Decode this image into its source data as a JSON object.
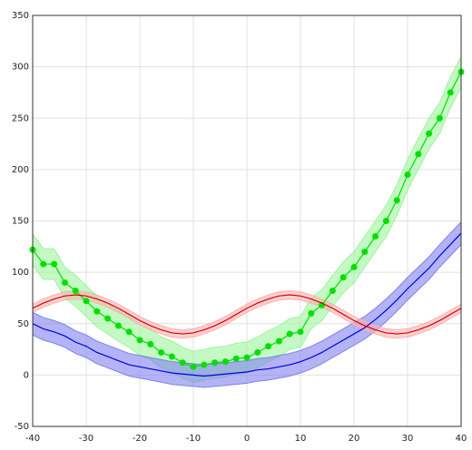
{
  "chart_data": {
    "type": "line",
    "x": [
      -40,
      -38,
      -36,
      -34,
      -32,
      -30,
      -28,
      -26,
      -24,
      -22,
      -20,
      -18,
      -16,
      -14,
      -12,
      -10,
      -8,
      -6,
      -4,
      -2,
      0,
      2,
      4,
      6,
      8,
      10,
      12,
      14,
      16,
      18,
      20,
      22,
      24,
      26,
      28,
      30,
      32,
      34,
      36,
      38,
      40
    ],
    "series": [
      {
        "color": "#00e000",
        "band_color": "#9cf59c",
        "markers": true,
        "error": 15,
        "values": [
          122,
          108,
          108,
          90,
          82,
          72,
          62,
          55,
          48,
          42,
          34,
          30,
          22,
          18,
          12,
          8,
          10,
          12,
          13,
          16,
          17,
          22,
          28,
          33,
          40,
          42,
          60,
          68,
          82,
          95,
          105,
          120,
          135,
          150,
          170,
          195,
          215,
          235,
          250,
          275,
          295
        ]
      },
      {
        "color": "#0000dd",
        "band_color": "#8080f0",
        "markers": false,
        "error": 11,
        "values": [
          50,
          45,
          42,
          38,
          32,
          28,
          22,
          18,
          14,
          10,
          8,
          6,
          4,
          2,
          1,
          0,
          -1,
          0,
          1,
          2,
          3,
          5,
          6,
          8,
          10,
          13,
          17,
          22,
          28,
          34,
          40,
          46,
          54,
          63,
          73,
          84,
          94,
          104,
          116,
          127,
          138
        ]
      },
      {
        "color": "#e00000",
        "band_color": "#f7b0b0",
        "markers": false,
        "error": 4,
        "values": [
          65,
          70,
          74,
          77,
          78,
          77,
          74,
          70,
          65,
          59,
          53,
          48,
          44,
          41,
          40,
          41,
          44,
          48,
          53,
          59,
          65,
          70,
          74,
          77,
          78,
          77,
          74,
          70,
          65,
          59,
          53,
          48,
          44,
          41,
          40,
          41,
          44,
          48,
          53,
          59,
          65
        ]
      }
    ],
    "xlim": [
      -40,
      40
    ],
    "xticks": [
      -40,
      -30,
      -20,
      -10,
      0,
      10,
      20,
      30,
      40
    ],
    "ylim": [
      -50,
      350
    ],
    "yticks": [
      -50,
      0,
      50,
      100,
      150,
      200,
      250,
      300,
      350
    ],
    "grid": true
  }
}
